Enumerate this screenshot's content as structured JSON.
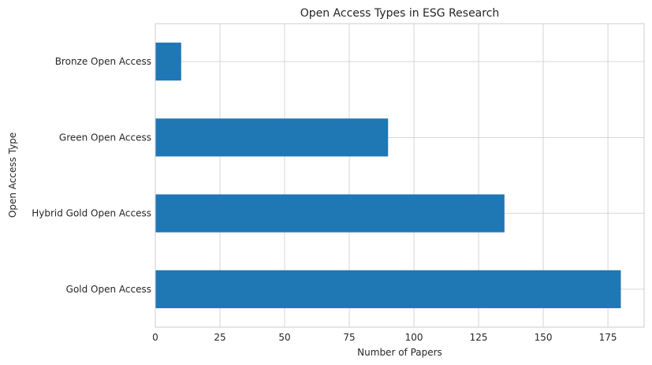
{
  "chart_data": {
    "type": "bar",
    "orientation": "horizontal",
    "title": "Open Access Types in ESG Research",
    "xlabel": "Number of Papers",
    "ylabel": "Open Access Type",
    "categories": [
      "Gold Open Access",
      "Hybrid Gold Open Access",
      "Green Open Access",
      "Bronze Open Access"
    ],
    "values": [
      180,
      135,
      90,
      10
    ],
    "xlim": [
      0,
      189
    ],
    "xticks": [
      0,
      25,
      50,
      75,
      100,
      125,
      150,
      175
    ],
    "grid": true,
    "bar_color": "#1f77b4"
  }
}
